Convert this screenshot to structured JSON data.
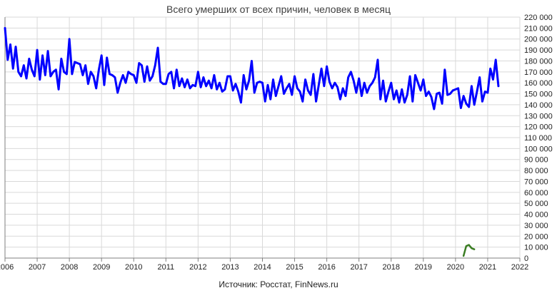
{
  "chart_data": {
    "type": "line",
    "title": "Всего умерших от всех причин, человек в месяц",
    "source": "Источник: Росстат, FinNews.ru",
    "xlabel": "",
    "ylabel": "",
    "xlim": [
      2006,
      2022
    ],
    "ylim": [
      0,
      220000
    ],
    "x_ticks": [
      "2006",
      "2007",
      "2008",
      "2009",
      "2010",
      "2011",
      "2012",
      "2013",
      "2014",
      "2015",
      "2016",
      "2017",
      "2018",
      "2019",
      "2020",
      "2021",
      "2022"
    ],
    "y_ticks": [
      "0",
      "10 000",
      "20 000",
      "30 000",
      "40 000",
      "50 000",
      "60 000",
      "70 000",
      "80 000",
      "90 000",
      "100 000",
      "110 000",
      "120 000",
      "130 000",
      "140 000",
      "150 000",
      "160 000",
      "170 000",
      "180 000",
      "190 000",
      "200 000",
      "210 000",
      "220 000"
    ],
    "grid": true,
    "legend": "none",
    "colors": {
      "deaths": "#0000ff",
      "covid": "#3a7d22",
      "grid": "#d9d9d9",
      "axis": "#7f7f7f"
    },
    "series": [
      {
        "start": "2006-01",
        "values": [
          210000,
          181000,
          195000,
          173000,
          193000,
          170000,
          166000,
          176000,
          164000,
          182000,
          172000,
          166000,
          190000,
          163000,
          185000,
          167000,
          189000,
          166000,
          170000,
          172000,
          154000,
          182000,
          170000,
          168000,
          200000,
          168000,
          179000,
          178000,
          177000,
          167000,
          176000,
          159000,
          170000,
          166000,
          155000,
          172000,
          185000,
          158000,
          183000,
          168000,
          167000,
          165000,
          151000,
          160000,
          167000,
          160000,
          170000,
          168000,
          167000,
          160000,
          178000,
          176000,
          161000,
          175000,
          162000,
          166000,
          176000,
          192000,
          161000,
          159000,
          159000,
          168000,
          170000,
          155000,
          172000,
          157000,
          164000,
          156000,
          163000,
          155000,
          158000,
          157000,
          170000,
          156000,
          165000,
          157000,
          162000,
          155000,
          167000,
          154000,
          160000,
          152000,
          154000,
          166000,
          166000,
          153000,
          159000,
          152000,
          142000,
          167000,
          154000,
          162000,
          180000,
          151000,
          160000,
          161000,
          160000,
          143000,
          158000,
          145000,
          163000,
          148000,
          157000,
          166000,
          150000,
          155000,
          159000,
          149000,
          166000,
          155000,
          152000,
          143000,
          163000,
          153000,
          149000,
          168000,
          143000,
          158000,
          173000,
          157000,
          175000,
          161000,
          155000,
          160000,
          156000,
          145000,
          155000,
          148000,
          165000,
          170000,
          162000,
          151000,
          164000,
          148000,
          160000,
          151000,
          157000,
          160000,
          165000,
          181000,
          145000,
          162000,
          143000,
          152000,
          160000,
          145000,
          153000,
          142000,
          154000,
          142000,
          149000,
          166000,
          143000,
          167000,
          160000,
          153000,
          163000,
          148000,
          152000,
          147000,
          136000,
          150000,
          151000,
          141000,
          172000,
          149000,
          150000,
          153000,
          154000,
          155000,
          137000,
          148000,
          141000,
          138000,
          157000,
          140000,
          152000,
          165000,
          143000,
          152000,
          151000,
          173000,
          163000,
          181000,
          157000
        ]
      },
      {
        "start": "2020-04",
        "values": [
          2000,
          11000,
          12000,
          9000,
          8000
        ]
      }
    ]
  }
}
